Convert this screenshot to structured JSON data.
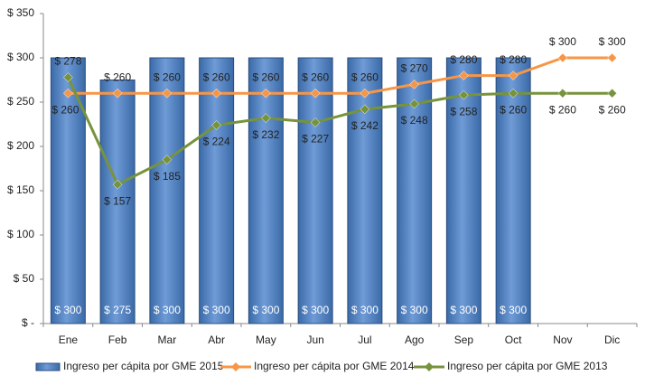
{
  "chart_data": {
    "type": "bar-line",
    "categories": [
      "Ene",
      "Feb",
      "Mar",
      "Abr",
      "May",
      "Jun",
      "Jul",
      "Ago",
      "Sep",
      "Oct",
      "Nov",
      "Dic"
    ],
    "series": [
      {
        "name": "Ingreso per cápita por GME 2015",
        "type": "bar",
        "color": "#4f81bd",
        "values": [
          300,
          275,
          300,
          300,
          300,
          300,
          300,
          300,
          300,
          300,
          null,
          null
        ],
        "value_labels": [
          "$ 300",
          "$ 275",
          "$ 300",
          "$ 300",
          "$ 300",
          "$ 300",
          "$ 300",
          "$ 300",
          "$ 300",
          "$ 300",
          null,
          null
        ]
      },
      {
        "name": "Ingreso per cápita por GME 2014",
        "type": "line",
        "color": "#f79646",
        "values": [
          260,
          260,
          260,
          260,
          260,
          260,
          260,
          270,
          280,
          280,
          300,
          300
        ],
        "value_labels": [
          "$ 260",
          "$ 260",
          "$ 260",
          "$ 260",
          "$ 260",
          "$ 260",
          "$ 260",
          "$ 270",
          "$ 280",
          "$ 280",
          "$ 300",
          "$ 300"
        ]
      },
      {
        "name": "Ingreso per cápita por GME 2013",
        "type": "line",
        "color": "#77933c",
        "values": [
          278,
          157,
          185,
          224,
          232,
          227,
          242,
          248,
          258,
          260,
          260,
          260
        ],
        "value_labels": [
          "$ 278",
          "$ 157",
          "$ 185",
          "$ 224",
          "$ 232",
          "$ 227",
          "$ 242",
          "$ 248",
          "$ 258",
          "$ 260",
          "$ 260",
          "$ 260"
        ]
      }
    ],
    "ylim": [
      0,
      350
    ],
    "yticks": [
      {
        "value": 0,
        "label": "$ -"
      },
      {
        "value": 50,
        "label": "$ 50"
      },
      {
        "value": 100,
        "label": "$ 100"
      },
      {
        "value": 150,
        "label": "$ 150"
      },
      {
        "value": 200,
        "label": "$ 200"
      },
      {
        "value": 250,
        "label": "$ 250"
      },
      {
        "value": 300,
        "label": "$ 300"
      },
      {
        "value": 350,
        "label": "$ 350"
      }
    ],
    "grid": false,
    "legend": "bottom"
  }
}
